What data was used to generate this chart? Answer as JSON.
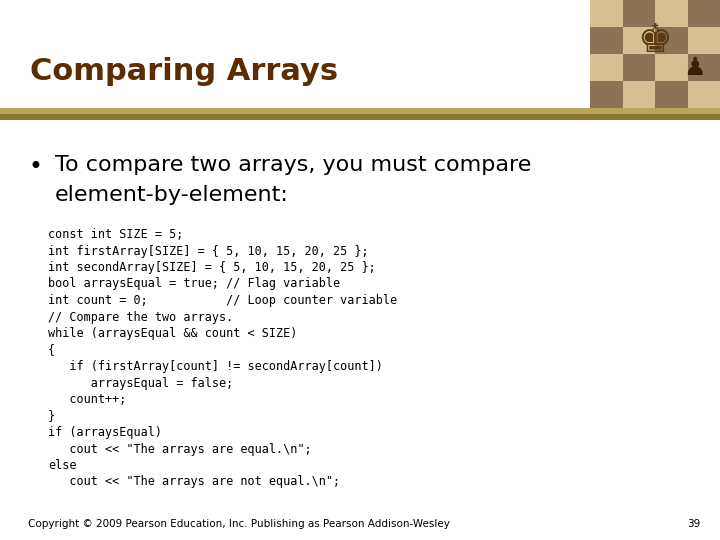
{
  "title": "Comparing Arrays",
  "title_color": "#5B2D00",
  "title_fontsize": 22,
  "bg_color": "#FFFFFF",
  "header_bar_color1": "#B8A558",
  "header_bar_color2": "#8B7536",
  "bullet_text_line1": "To compare two arrays, you must compare",
  "bullet_text_line2": "element-by-element:",
  "bullet_fontsize": 16,
  "code_lines": [
    "const int SIZE = 5;",
    "int firstArray[SIZE] = { 5, 10, 15, 20, 25 };",
    "int secondArray[SIZE] = { 5, 10, 15, 20, 25 };",
    "bool arraysEqual = true; // Flag variable",
    "int count = 0;           // Loop counter variable",
    "// Compare the two arrays.",
    "while (arraysEqual && count < SIZE)",
    "{",
    "   if (firstArray[count] != secondArray[count])",
    "      arraysEqual = false;",
    "   count++;",
    "}",
    "if (arraysEqual)",
    "   cout << \"The arrays are equal.\\n\";",
    "else",
    "   cout << \"The arrays are not equal.\\n\";"
  ],
  "code_fontsize": 8.5,
  "code_color": "#000000",
  "footer_text": "Copyright © 2009 Pearson Education, Inc. Publishing as Pearson Addison-Wesley",
  "footer_page": "39",
  "footer_fontsize": 7.5,
  "chess_colors_dark": "#8B7355",
  "chess_colors_light": "#D4C090",
  "chess_piece_color": "#5A3A10"
}
